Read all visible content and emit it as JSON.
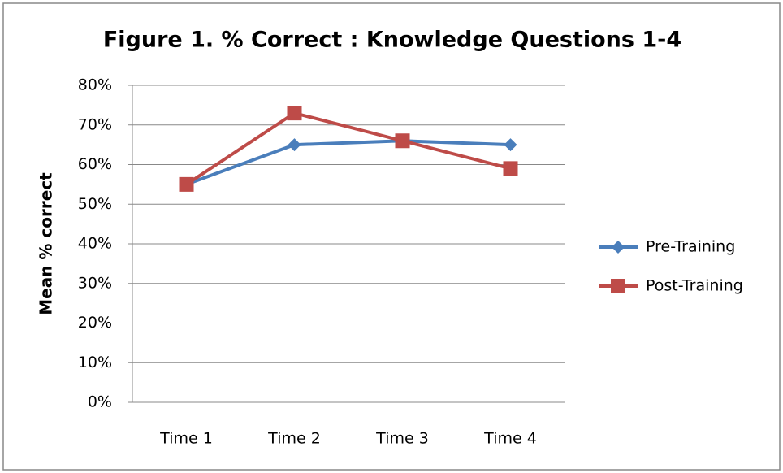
{
  "chart_data": {
    "type": "line",
    "title": "Figure 1. % Correct : Knowledge Questions 1-4",
    "y_label": "Mean % correct",
    "categories": [
      "Time 1",
      "Time 2",
      "Time 3",
      "Time 4"
    ],
    "series": [
      {
        "name": "Pre-Training",
        "color": "#4a7ebb",
        "marker": "diamond",
        "values": [
          55,
          65,
          66,
          65
        ]
      },
      {
        "name": "Post-Training",
        "color": "#be4b48",
        "marker": "square",
        "values": [
          55,
          73,
          66,
          59
        ]
      }
    ],
    "ylim": [
      0,
      80
    ],
    "yticks": [
      {
        "value": 0,
        "label": "0%"
      },
      {
        "value": 10,
        "label": "10%"
      },
      {
        "value": 20,
        "label": "20%"
      },
      {
        "value": 30,
        "label": "30%"
      },
      {
        "value": 40,
        "label": "40%"
      },
      {
        "value": 50,
        "label": "50%"
      },
      {
        "value": 60,
        "label": "60%"
      },
      {
        "value": 70,
        "label": "70%"
      },
      {
        "value": 80,
        "label": "80%"
      }
    ],
    "grid": true,
    "legend": "right"
  }
}
